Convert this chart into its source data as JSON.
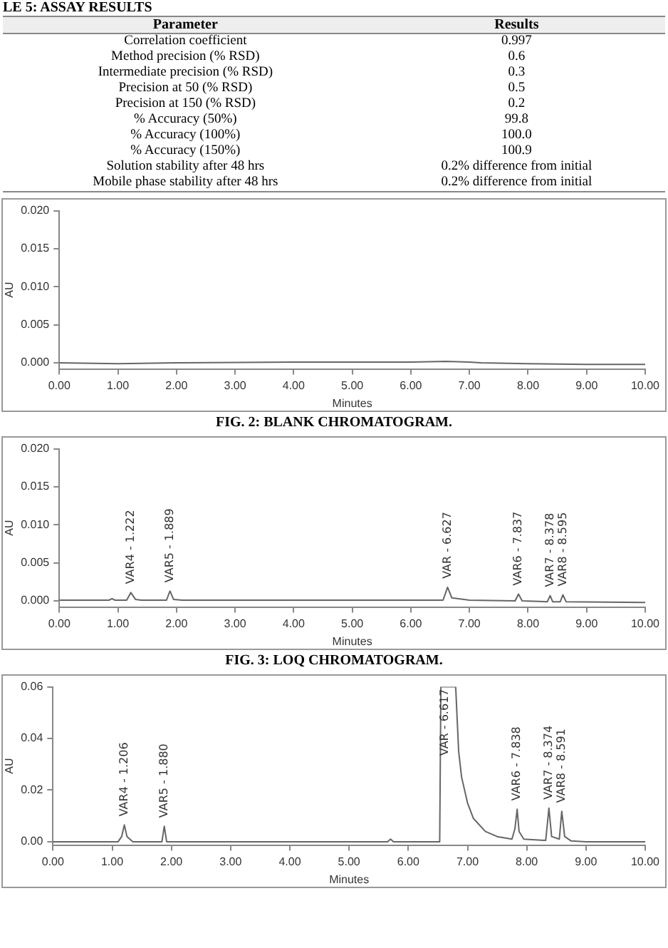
{
  "chart_data": [
    {
      "type": "other",
      "title": "LE 5: ASSAY RESULTS",
      "annotations": [
        "Parameter",
        "Results",
        "Correlation coefficient",
        "0.997",
        "Method precision (% RSD)",
        "0.6",
        "Intermediate precision (% RSD)",
        "0.3",
        "Precision at 50 (% RSD)",
        "0.5",
        "Precision at 150 (% RSD)",
        "0.2",
        "% Accuracy (50%)",
        "99.8",
        "% Accuracy (100%)",
        "100.0",
        "% Accuracy (150%)",
        "100.9",
        "Solution stability after 48 hrs",
        "0.2% difference from initial",
        "Mobile phase stability after 48 hrs",
        "0.2% difference from initial"
      ]
    },
    {
      "type": "line",
      "xlabel": "Minutes",
      "ylabel": "AU",
      "grid": false,
      "legend": false,
      "marker": "none",
      "x": [
        0,
        1,
        2,
        4,
        6,
        6.6,
        7,
        7.2,
        8,
        9,
        10
      ],
      "series": [
        {
          "color": "#666666",
          "values": [
            0,
            -0.0001,
            0,
            0.0001,
            0.0001,
            0.0002,
            0.0001,
            0,
            -0.0001,
            -0.0002,
            -0.0002
          ]
        }
      ],
      "xlim": [
        0,
        10
      ],
      "xticks": [
        {
          "value": 0,
          "label": "0.00"
        },
        {
          "value": 1,
          "label": "1.00"
        },
        {
          "value": 2,
          "label": "2.00"
        },
        {
          "value": 3,
          "label": "3.00"
        },
        {
          "value": 4,
          "label": "4.00"
        },
        {
          "value": 5,
          "label": "5.00"
        },
        {
          "value": 6,
          "label": "6.00"
        },
        {
          "value": 7,
          "label": "7.00"
        },
        {
          "value": 8,
          "label": "8.00"
        },
        {
          "value": 9,
          "label": "9.00"
        },
        {
          "value": 10,
          "label": "10.00"
        }
      ],
      "ylim": [
        -0.0008,
        0.02
      ],
      "yticks": [
        {
          "value": 0,
          "label": "0.000"
        },
        {
          "value": 0.005,
          "label": "0.005"
        },
        {
          "value": 0.01,
          "label": "0.010"
        },
        {
          "value": 0.015,
          "label": "0.015"
        },
        {
          "value": 0.02,
          "label": "0.020"
        }
      ],
      "annotations": [
        "FIG. 2:  BLANK CHROMATOGRAM."
      ]
    },
    {
      "type": "line",
      "xlabel": "Minutes",
      "ylabel": "AU",
      "grid": false,
      "legend": false,
      "marker": "none",
      "x": [
        0,
        0.85,
        0.9,
        0.95,
        1.15,
        1.222,
        1.3,
        1.4,
        1.83,
        1.889,
        1.95,
        2.1,
        6.55,
        6.627,
        6.7,
        7,
        7.78,
        7.837,
        7.9,
        8.33,
        8.378,
        8.42,
        8.55,
        8.595,
        8.65,
        10
      ],
      "series": [
        {
          "color": "#666666",
          "values": [
            0.0001,
            0.0001,
            0.0003,
            0.0001,
            0.0001,
            0.0011,
            0.0002,
            0.0001,
            0.0001,
            0.0013,
            0.0002,
            0.0001,
            0.0001,
            0.0018,
            0.0004,
            0.0001,
            0,
            0.0009,
            0,
            -0.0001,
            0.0007,
            -0.0001,
            -0.0001,
            0.0008,
            -0.0001,
            -0.0002
          ]
        }
      ],
      "xlim": [
        0,
        10
      ],
      "xticks": [
        {
          "value": 0,
          "label": "0.00"
        },
        {
          "value": 1,
          "label": "1.00"
        },
        {
          "value": 2,
          "label": "2.00"
        },
        {
          "value": 3,
          "label": "3.00"
        },
        {
          "value": 4,
          "label": "4.00"
        },
        {
          "value": 5,
          "label": "5.00"
        },
        {
          "value": 6,
          "label": "6.00"
        },
        {
          "value": 7,
          "label": "7.00"
        },
        {
          "value": 8,
          "label": "8.00"
        },
        {
          "value": 9,
          "label": "9.00"
        },
        {
          "value": 10,
          "label": "10.00"
        }
      ],
      "ylim": [
        -0.0008,
        0.02
      ],
      "yticks": [
        {
          "value": 0,
          "label": "0.000"
        },
        {
          "value": 0.005,
          "label": "0.005"
        },
        {
          "value": 0.01,
          "label": "0.010"
        },
        {
          "value": 0.015,
          "label": "0.015"
        },
        {
          "value": 0.02,
          "label": "0.020"
        }
      ],
      "annotations": [
        {
          "text": "VAR4 - 1.222",
          "x": 1.222,
          "y": 0.0011
        },
        {
          "text": "VAR5 - 1.889",
          "x": 1.889,
          "y": 0.0013
        },
        {
          "text": "VAR - 6.627",
          "x": 6.627,
          "y": 0.0018
        },
        {
          "text": "VAR6 - 7.837",
          "x": 7.837,
          "y": 0.0009
        },
        {
          "text": "VAR7 - 8.378",
          "x": 8.378,
          "y": 0.0007
        },
        {
          "text": "VAR8 - 8.595",
          "x": 8.595,
          "y": 0.0008
        },
        "FIG. 3:  LOQ CHROMATOGRAM."
      ]
    },
    {
      "type": "line",
      "xlabel": "Minutes",
      "ylabel": "AU",
      "grid": false,
      "legend": false,
      "marker": "none",
      "x": [
        0,
        1.1,
        1.16,
        1.206,
        1.25,
        1.35,
        1.84,
        1.88,
        1.92,
        5.65,
        5.7,
        5.75,
        6.53,
        6.55,
        6.8,
        6.85,
        6.9,
        7,
        7.1,
        7.3,
        7.5,
        7.75,
        7.8,
        7.838,
        7.87,
        7.95,
        8.32,
        8.374,
        8.42,
        8.55,
        8.591,
        8.64,
        8.75,
        9,
        10
      ],
      "series": [
        {
          "color": "#666666",
          "values": [
            0,
            0,
            0.002,
            0.0065,
            0.002,
            0,
            0,
            0.006,
            0,
            0,
            0.001,
            0,
            0,
            0.06,
            0.06,
            0.035,
            0.025,
            0.015,
            0.009,
            0.004,
            0.002,
            0.001,
            0.005,
            0.0126,
            0.004,
            0.001,
            0.0005,
            0.013,
            0.002,
            0.001,
            0.0118,
            0.002,
            0.0003,
            0,
            0
          ]
        }
      ],
      "xlim": [
        0,
        10
      ],
      "xticks": [
        {
          "value": 0,
          "label": "0.00"
        },
        {
          "value": 1,
          "label": "1.00"
        },
        {
          "value": 2,
          "label": "2.00"
        },
        {
          "value": 3,
          "label": "3.00"
        },
        {
          "value": 4,
          "label": "4.00"
        },
        {
          "value": 5,
          "label": "5.00"
        },
        {
          "value": 6,
          "label": "6.00"
        },
        {
          "value": 7,
          "label": "7.00"
        },
        {
          "value": 8,
          "label": "8.00"
        },
        {
          "value": 9,
          "label": "9.00"
        },
        {
          "value": 10,
          "label": "10.00"
        }
      ],
      "ylim": [
        -0.0013,
        0.06
      ],
      "yticks": [
        {
          "value": 0,
          "label": "0.00"
        },
        {
          "value": 0.02,
          "label": "0.02"
        },
        {
          "value": 0.04,
          "label": "0.04"
        },
        {
          "value": 0.06,
          "label": "0.06"
        }
      ],
      "annotations": [
        {
          "text": "VAR4 - 1.206",
          "x": 1.206,
          "y": 0.0065
        },
        {
          "text": "VAR5 - 1.880",
          "x": 1.88,
          "y": 0.006
        },
        {
          "text": "VAR - 6.617",
          "x": 6.617,
          "y": 0.03
        },
        {
          "text": "VAR6 - 7.838",
          "x": 7.838,
          "y": 0.0126
        },
        {
          "text": "VAR7 - 8.374",
          "x": 8.374,
          "y": 0.013
        },
        {
          "text": "VAR8 - 8.591",
          "x": 8.591,
          "y": 0.0118
        }
      ]
    }
  ]
}
